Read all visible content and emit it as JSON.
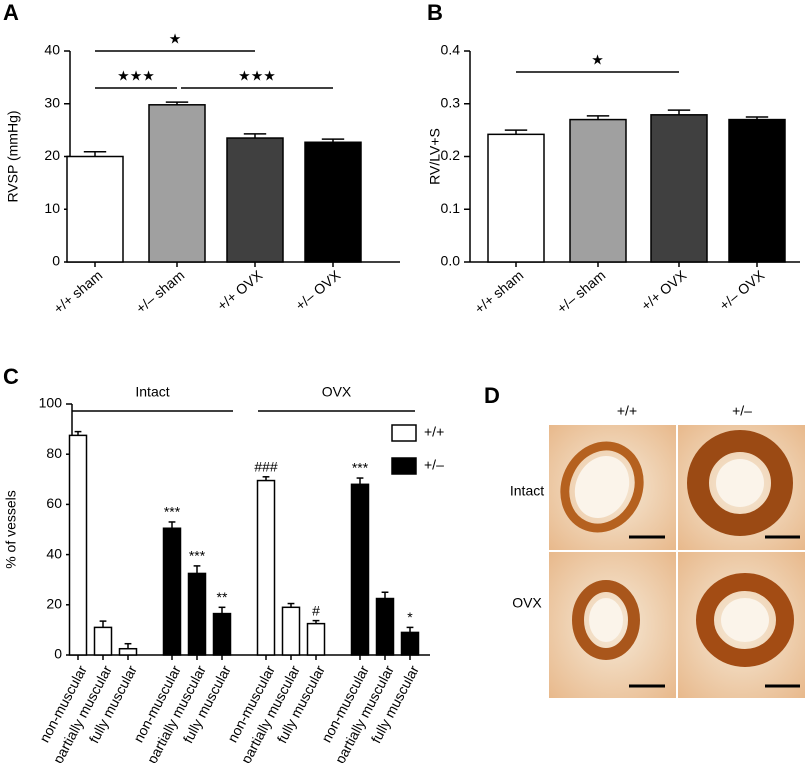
{
  "chart_data": [
    {
      "type": "bar",
      "label": "A",
      "y_label": "RVSP (mmHg)",
      "categories": [
        "+/+ sham",
        "+/– sham",
        "+/+ OVX",
        "+/– OVX"
      ],
      "values": [
        20,
        29.8,
        23.5,
        22.7
      ],
      "errors": [
        0.9,
        0.5,
        0.8,
        0.6
      ],
      "colors": [
        "#ffffff",
        "#a0a0a0",
        "#404040",
        "#000000"
      ],
      "ylim": [
        0,
        40
      ],
      "yticks": [
        0,
        10,
        20,
        30,
        40
      ],
      "annotations": [
        "★",
        "★★★",
        "★★★"
      ]
    },
    {
      "type": "bar",
      "label": "B",
      "y_label": "RV/LV+S",
      "categories": [
        "+/+ sham",
        "+/– sham",
        "+/+ OVX",
        "+/– OVX"
      ],
      "values": [
        0.242,
        0.27,
        0.279,
        0.27
      ],
      "errors": [
        0.008,
        0.007,
        0.009,
        0.005
      ],
      "colors": [
        "#ffffff",
        "#a0a0a0",
        "#404040",
        "#000000"
      ],
      "ylim": [
        0,
        0.4
      ],
      "yticks": [
        {
          "value": 0,
          "label": "0.0"
        },
        0.1,
        0.2,
        0.3,
        0.4
      ],
      "annotations": [
        "★"
      ]
    },
    {
      "type": "grouped_bar",
      "label": "C",
      "y_label": "% of vessels",
      "groups": [
        "Intact",
        "OVX"
      ],
      "categories": [
        "non-muscular",
        "partially muscular",
        "fully muscular",
        "non-muscular",
        "partially muscular",
        "fully muscular",
        "non-muscular",
        "partially muscular",
        "fully muscular",
        "non-muscular",
        "partially muscular",
        "fully muscular"
      ],
      "series": [
        {
          "name": "+/+",
          "color": "#ffffff",
          "values": [
            87.5,
            11,
            2.5,
            null,
            null,
            null,
            69.5,
            19,
            12.5,
            null,
            null,
            null
          ],
          "errors": [
            1.5,
            2.5,
            2,
            null,
            null,
            null,
            1.5,
            1.5,
            1.2,
            null,
            null,
            null
          ],
          "annotations": [
            null,
            null,
            null,
            null,
            null,
            null,
            "###",
            null,
            "#",
            null,
            null,
            null
          ]
        },
        {
          "name": "+/–",
          "color": "#000000",
          "values": [
            null,
            null,
            null,
            50.5,
            32.5,
            16.5,
            null,
            null,
            null,
            68,
            22.5,
            9
          ],
          "errors": [
            null,
            null,
            null,
            2.5,
            3,
            2.5,
            null,
            null,
            null,
            2.5,
            2.5,
            2
          ],
          "annotations": [
            null,
            null,
            null,
            "***",
            "***",
            "**",
            null,
            null,
            null,
            "***",
            null,
            "*"
          ]
        }
      ],
      "ylim": [
        0,
        100
      ],
      "yticks": [
        0,
        20,
        40,
        60,
        80,
        100
      ],
      "legend": "upper right"
    }
  ],
  "image_panel": {
    "label": "D",
    "columns": [
      "+/+",
      "+/–"
    ],
    "rows": [
      "Intact",
      "OVX"
    ]
  }
}
